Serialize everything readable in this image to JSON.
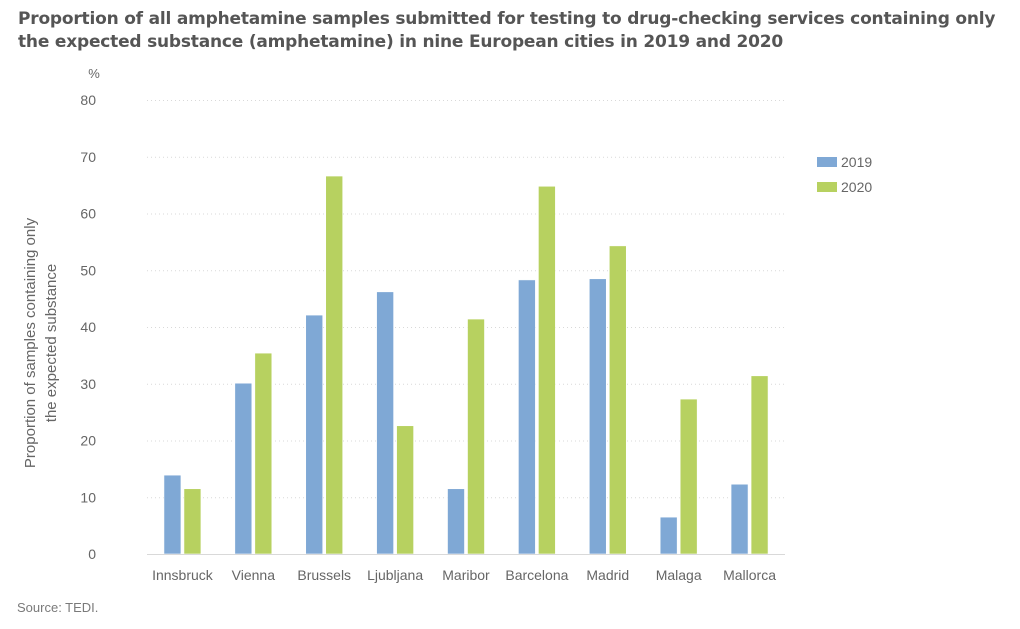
{
  "title": "Proportion of all amphetamine samples submitted for testing to drug-checking services containing only the expected substance (amphetamine) in nine European cities in 2019 and 2020",
  "source": "Source: TEDI.",
  "colors": {
    "2019": "#7fa8d5",
    "2020": "#b7d160",
    "grid": "#d9d9d9",
    "axis_text": "#666666"
  },
  "chart_data": {
    "type": "bar",
    "title": "Proportion of all amphetamine samples submitted for testing to drug-checking services containing only the expected substance (amphetamine) in nine European cities in 2019 and 2020",
    "categories": [
      "Innsbruck",
      "Vienna",
      "Brussels",
      "Ljubljana",
      "Maribor",
      "Barcelona",
      "Madrid",
      "Malaga",
      "Mallorca"
    ],
    "series": [
      {
        "name": "2019",
        "values": [
          13.9,
          30.1,
          42.1,
          46.2,
          11.5,
          48.3,
          48.5,
          6.5,
          12.3
        ]
      },
      {
        "name": "2020",
        "values": [
          11.5,
          35.4,
          66.6,
          22.6,
          41.4,
          64.8,
          54.3,
          27.3,
          31.4
        ]
      }
    ],
    "xlabel": "",
    "ylabel": "Proportion of samples containing only the expected substance",
    "ylabel_lines": [
      "Proportion of samples containing only",
      "the expected substance"
    ],
    "yunit": "%",
    "ylim": [
      0,
      80
    ],
    "yticks": [
      0,
      10,
      20,
      30,
      40,
      50,
      60,
      70,
      80
    ],
    "grid": true,
    "legend": "right"
  }
}
